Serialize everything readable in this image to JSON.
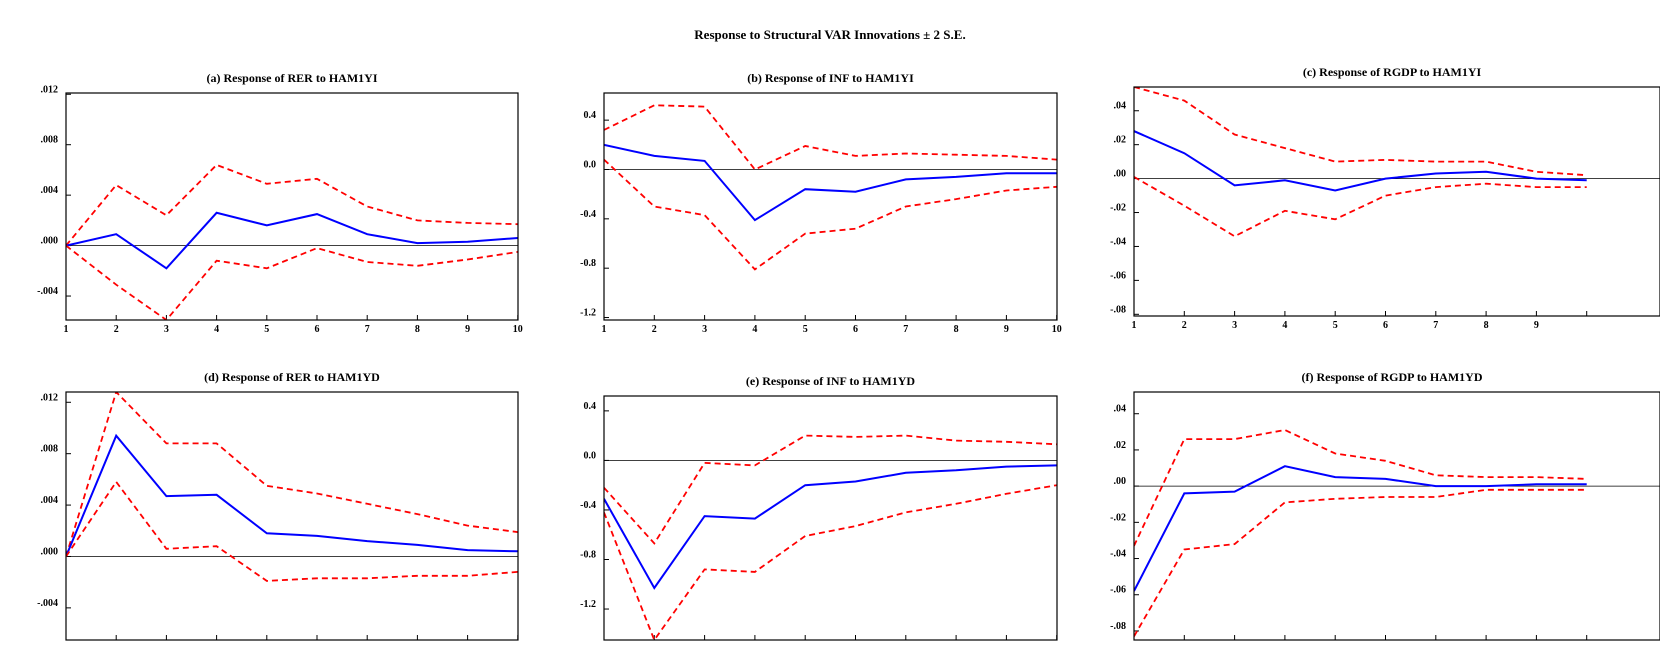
{
  "title": "Response to Structural VAR Innovations ± 2 S.E.",
  "colors": {
    "response": "#0000ff",
    "band": "#ff0000",
    "zero_line": "#000000"
  },
  "chart_data": [
    {
      "id": "a",
      "type": "line",
      "title": "(a) Response of RER to HAM1YI",
      "x": [
        1,
        2,
        3,
        4,
        5,
        6,
        7,
        8,
        9,
        10
      ],
      "xticks": [
        "1",
        "2",
        "3",
        "4",
        "5",
        "6",
        "7",
        "8",
        "9",
        "10"
      ],
      "ylim": [
        -0.0059,
        0.0121
      ],
      "yticks": [
        {
          "v": 0.012,
          "label": ".012"
        },
        {
          "v": 0.008,
          "label": ".008"
        },
        {
          "v": 0.004,
          "label": ".004"
        },
        {
          "v": 0.0,
          "label": ".000"
        },
        {
          "v": -0.004,
          "label": "-.004"
        }
      ],
      "series": [
        {
          "role": "upper",
          "values": [
            0.0,
            0.0048,
            0.0024,
            0.0064,
            0.0049,
            0.0053,
            0.0031,
            0.002,
            0.0018,
            0.0017
          ]
        },
        {
          "role": "response",
          "values": [
            0.0,
            0.0009,
            -0.0018,
            0.0026,
            0.0016,
            0.0025,
            0.0009,
            0.0002,
            0.0003,
            0.0006
          ]
        },
        {
          "role": "lower",
          "values": [
            0.0,
            -0.0031,
            -0.0059,
            -0.0012,
            -0.0018,
            -0.0002,
            -0.0013,
            -0.0016,
            -0.0011,
            -0.0005
          ]
        }
      ]
    },
    {
      "id": "b",
      "type": "line",
      "title": "(b) Response of INF to HAM1YI",
      "x": [
        1,
        2,
        3,
        4,
        5,
        6,
        7,
        8,
        9,
        10
      ],
      "xticks": [
        "1",
        "2",
        "3",
        "4",
        "5",
        "6",
        "7",
        "8",
        "9",
        "10"
      ],
      "ylim": [
        -1.22,
        0.62
      ],
      "yticks": [
        {
          "v": 0.4,
          "label": "0.4"
        },
        {
          "v": 0.0,
          "label": "0.0"
        },
        {
          "v": -0.4,
          "label": "-0.4"
        },
        {
          "v": -0.8,
          "label": "-0.8"
        },
        {
          "v": -1.2,
          "label": "-1.2"
        }
      ],
      "series": [
        {
          "role": "upper",
          "values": [
            0.32,
            0.52,
            0.51,
            0.0,
            0.19,
            0.11,
            0.13,
            0.12,
            0.11,
            0.08
          ]
        },
        {
          "role": "response",
          "values": [
            0.2,
            0.11,
            0.07,
            -0.41,
            -0.16,
            -0.18,
            -0.08,
            -0.06,
            -0.03,
            -0.03
          ]
        },
        {
          "role": "lower",
          "values": [
            0.08,
            -0.3,
            -0.37,
            -0.81,
            -0.52,
            -0.48,
            -0.3,
            -0.24,
            -0.17,
            -0.14
          ]
        }
      ]
    },
    {
      "id": "c",
      "type": "line",
      "title": "(c) Response of RGDP to HAM1YI",
      "x": [
        1,
        2,
        3,
        4,
        5,
        6,
        7,
        8,
        9,
        10
      ],
      "xticks": [
        "1",
        "2",
        "3",
        "4",
        "5",
        "6",
        "7",
        "8",
        "9"
      ],
      "ylim": [
        -0.081,
        0.054
      ],
      "yticks": [
        {
          "v": 0.04,
          "label": ".04"
        },
        {
          "v": 0.02,
          "label": ".02"
        },
        {
          "v": 0.0,
          "label": ".00"
        },
        {
          "v": -0.02,
          "label": "-.02"
        },
        {
          "v": -0.04,
          "label": "-.04"
        },
        {
          "v": -0.06,
          "label": "-.06"
        },
        {
          "v": -0.08,
          "label": "-.08"
        }
      ],
      "series": [
        {
          "role": "upper",
          "values": [
            0.054,
            0.046,
            0.026,
            0.018,
            0.01,
            0.011,
            0.01,
            0.01,
            0.004,
            0.002
          ]
        },
        {
          "role": "response",
          "values": [
            0.028,
            0.015,
            -0.004,
            -0.001,
            -0.007,
            0.0,
            0.003,
            0.004,
            0.0,
            -0.001
          ]
        },
        {
          "role": "lower",
          "values": [
            0.001,
            -0.016,
            -0.034,
            -0.019,
            -0.024,
            -0.01,
            -0.005,
            -0.003,
            -0.005,
            -0.005
          ]
        }
      ]
    },
    {
      "id": "d",
      "type": "line",
      "title": "(d) Response of RER to HAM1YD",
      "x": [
        1,
        2,
        3,
        4,
        5,
        6,
        7,
        8,
        9,
        10
      ],
      "xticks": [],
      "ylim": [
        -0.0065,
        0.0128
      ],
      "yticks": [
        {
          "v": 0.012,
          "label": ".012"
        },
        {
          "v": 0.008,
          "label": ".008"
        },
        {
          "v": 0.004,
          "label": ".004"
        },
        {
          "v": 0.0,
          "label": ".000"
        },
        {
          "v": -0.004,
          "label": "-.004"
        }
      ],
      "series": [
        {
          "role": "upper",
          "values": [
            0.0,
            0.0128,
            0.0088,
            0.0088,
            0.0055,
            0.0049,
            0.0041,
            0.0033,
            0.0024,
            0.0019
          ]
        },
        {
          "role": "response",
          "values": [
            0.0,
            0.0094,
            0.0047,
            0.0048,
            0.0018,
            0.0016,
            0.0012,
            0.0009,
            0.0005,
            0.0004
          ]
        },
        {
          "role": "lower",
          "values": [
            0.0,
            0.0058,
            0.0006,
            0.0008,
            -0.0019,
            -0.0017,
            -0.0017,
            -0.0015,
            -0.0015,
            -0.0012
          ]
        }
      ]
    },
    {
      "id": "e",
      "type": "line",
      "title": "(e) Response of INF to HAM1YD",
      "x": [
        1,
        2,
        3,
        4,
        5,
        6,
        7,
        8,
        9,
        10
      ],
      "xticks": [],
      "ylim": [
        -1.45,
        0.52
      ],
      "yticks": [
        {
          "v": 0.4,
          "label": "0.4"
        },
        {
          "v": 0.0,
          "label": "0.0"
        },
        {
          "v": -0.4,
          "label": "-0.4"
        },
        {
          "v": -0.8,
          "label": "-0.8"
        },
        {
          "v": -1.2,
          "label": "-1.2"
        }
      ],
      "series": [
        {
          "role": "upper",
          "values": [
            -0.22,
            -0.67,
            -0.02,
            -0.04,
            0.2,
            0.19,
            0.2,
            0.16,
            0.15,
            0.13
          ]
        },
        {
          "role": "response",
          "values": [
            -0.31,
            -1.03,
            -0.45,
            -0.47,
            -0.2,
            -0.17,
            -0.1,
            -0.08,
            -0.05,
            -0.04
          ]
        },
        {
          "role": "lower",
          "values": [
            -0.42,
            -1.45,
            -0.88,
            -0.9,
            -0.61,
            -0.53,
            -0.42,
            -0.35,
            -0.27,
            -0.2
          ]
        }
      ]
    },
    {
      "id": "f",
      "type": "line",
      "title": "(f) Response of RGDP to HAM1YD",
      "x": [
        1,
        2,
        3,
        4,
        5,
        6,
        7,
        8,
        9,
        10
      ],
      "xticks": [],
      "ylim": [
        -0.085,
        0.052
      ],
      "yticks": [
        {
          "v": 0.04,
          "label": ".04"
        },
        {
          "v": 0.02,
          "label": ".02"
        },
        {
          "v": 0.0,
          "label": ".00"
        },
        {
          "v": -0.02,
          "label": "-.02"
        },
        {
          "v": -0.04,
          "label": "-.04"
        },
        {
          "v": -0.06,
          "label": "-.06"
        },
        {
          "v": -0.08,
          "label": "-.08"
        }
      ],
      "series": [
        {
          "role": "upper",
          "values": [
            -0.033,
            0.026,
            0.026,
            0.031,
            0.018,
            0.014,
            0.006,
            0.005,
            0.005,
            0.004
          ]
        },
        {
          "role": "response",
          "values": [
            -0.058,
            -0.004,
            -0.003,
            0.011,
            0.005,
            0.004,
            0.0,
            0.0,
            0.001,
            0.001
          ]
        },
        {
          "role": "lower",
          "values": [
            -0.083,
            -0.035,
            -0.032,
            -0.009,
            -0.007,
            -0.006,
            -0.006,
            -0.002,
            -0.002,
            -0.002
          ]
        }
      ]
    }
  ]
}
